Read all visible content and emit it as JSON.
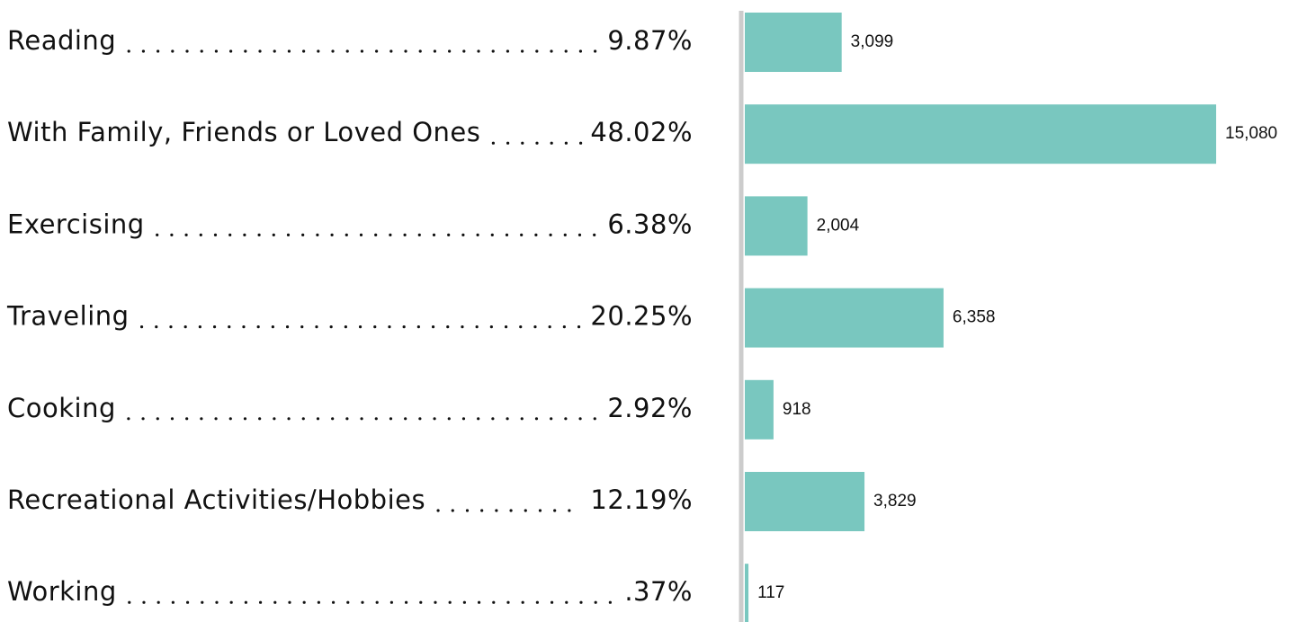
{
  "chart_data": {
    "type": "bar",
    "orientation": "horizontal",
    "categories": [
      "Reading",
      "With Family, Friends or Loved Ones",
      "Exercising",
      "Traveling",
      "Cooking",
      "Recreational Activities/Hobbies",
      "Working"
    ],
    "shares": [
      9.87,
      48.02,
      6.38,
      20.25,
      2.92,
      12.19,
      0.37
    ],
    "share_labels": [
      "9.87%",
      "48.02%",
      "6.38%",
      "20.25%",
      "2.92%",
      "12.19%",
      ".37%"
    ],
    "values": [
      3099,
      15080,
      2004,
      6358,
      918,
      3829,
      117
    ],
    "value_labels": [
      "3,099",
      "15,080",
      "2,004",
      "6,358",
      "918",
      "3,829",
      "117"
    ],
    "color": "#79c7bf"
  }
}
